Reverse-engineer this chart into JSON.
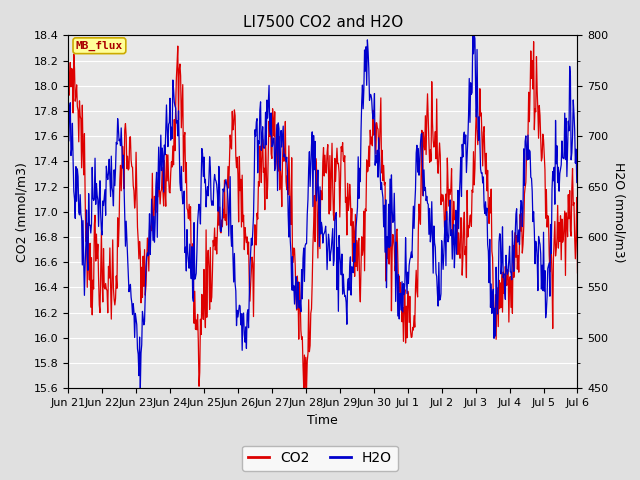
{
  "title": "LI7500 CO2 and H2O",
  "xlabel": "Time",
  "ylabel_left": "CO2 (mmol/m3)",
  "ylabel_right": "H2O (mmol/m3)",
  "ylim_left": [
    15.6,
    18.4
  ],
  "ylim_right": [
    450,
    800
  ],
  "yticks_left": [
    15.6,
    15.8,
    16.0,
    16.2,
    16.4,
    16.6,
    16.8,
    17.0,
    17.2,
    17.4,
    17.6,
    17.8,
    18.0,
    18.2,
    18.4
  ],
  "yticks_right": [
    450,
    500,
    550,
    600,
    650,
    700,
    750,
    800
  ],
  "xtick_labels": [
    "Jun 21",
    "Jun 22",
    "Jun 23",
    "Jun 24",
    "Jun 25",
    "Jun 26",
    "Jun 27",
    "Jun 28",
    "Jun 29",
    "Jun 30",
    "Jul 1",
    "Jul 2",
    "Jul 3",
    "Jul 4",
    "Jul 5",
    "Jul 6"
  ],
  "co2_color": "#DD0000",
  "h2o_color": "#0000CC",
  "fig_bg_color": "#E0E0E0",
  "plot_bg_color": "#E8E8E8",
  "grid_color": "#FFFFFF",
  "legend_label_co2": "CO2",
  "legend_label_h2o": "H2O",
  "watermark_text": "MB_flux",
  "watermark_bg": "#FFFF99",
  "watermark_border": "#CCAA00",
  "title_fontsize": 11,
  "axis_label_fontsize": 9,
  "tick_fontsize": 8,
  "legend_fontsize": 10
}
